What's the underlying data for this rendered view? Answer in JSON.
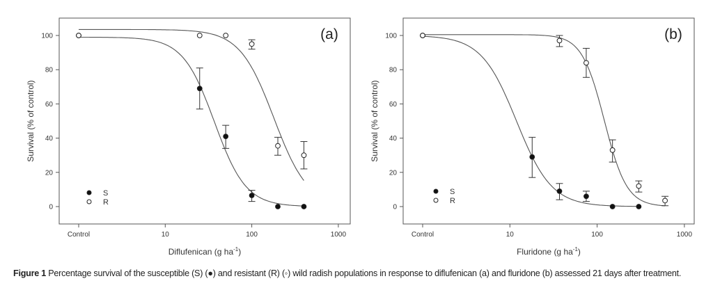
{
  "chart_data": [
    {
      "type": "scatter",
      "panel_label": "(a)",
      "xlabel": "Diflufenican (g ha",
      "xlabel_sup": "-1",
      "xlabel_end": ")",
      "ylabel": "Survival (% of control)",
      "xscale": "log",
      "xticks": [
        "Control",
        "10",
        "100",
        "1000"
      ],
      "yticks": [
        0,
        20,
        40,
        60,
        80,
        100
      ],
      "ylim": [
        -10,
        110
      ],
      "legend": {
        "placement": "bottom-left",
        "entries": [
          {
            "name": "S",
            "marker": "filled-circle"
          },
          {
            "name": "R",
            "marker": "open-circle"
          }
        ]
      },
      "series": [
        {
          "name": "S",
          "marker": "filled",
          "x": [
            "Control",
            25,
            50,
            100,
            200,
            400
          ],
          "y": [
            100,
            69,
            41,
            6.5,
            0,
            0
          ],
          "err_low": [
            null,
            57,
            34,
            3,
            null,
            null
          ],
          "err_high": [
            null,
            81,
            47.5,
            9.5,
            null,
            null
          ],
          "fit": {
            "top": 99,
            "ed50": 37,
            "slope": 2.38
          }
        },
        {
          "name": "R",
          "marker": "open",
          "x": [
            "Control",
            25,
            50,
            100,
            200,
            400
          ],
          "y": [
            100,
            100,
            100,
            95,
            35.5,
            30
          ],
          "err_low": [
            null,
            null,
            null,
            92,
            30,
            22
          ],
          "err_high": [
            null,
            null,
            null,
            97.5,
            40.5,
            38
          ],
          "fit": {
            "top": 103.5,
            "ed50": 180,
            "slope": 2.2
          }
        }
      ]
    },
    {
      "type": "scatter",
      "panel_label": "(b)",
      "xlabel": "Fluridone (g ha",
      "xlabel_sup": "-1",
      "xlabel_end": ")",
      "ylabel": "Survival (% of control)",
      "xscale": "log",
      "xticks": [
        "Control",
        "10",
        "100",
        "1000"
      ],
      "yticks": [
        0,
        20,
        40,
        60,
        80,
        100
      ],
      "ylim": [
        -10,
        110
      ],
      "legend": {
        "placement": "bottom-left",
        "entries": [
          {
            "name": "S",
            "marker": "filled-circle"
          },
          {
            "name": "R",
            "marker": "open-circle"
          }
        ]
      },
      "series": [
        {
          "name": "S",
          "marker": "filled",
          "x": [
            "Control",
            18,
            37,
            75,
            150,
            300
          ],
          "y": [
            100,
            29,
            9,
            6,
            0,
            0
          ],
          "err_low": [
            null,
            17,
            4,
            3,
            null,
            null
          ],
          "err_high": [
            null,
            40.5,
            13.5,
            9,
            null,
            null
          ],
          "fit": {
            "top": 100,
            "ed50": 11.9,
            "slope": 2.15,
            "xmax": 300
          }
        },
        {
          "name": "R",
          "marker": "open",
          "x": [
            "Control",
            37,
            75,
            150,
            300,
            600
          ],
          "y": [
            100,
            97,
            84,
            33,
            12,
            3.5
          ],
          "err_low": [
            null,
            93.5,
            75.5,
            26,
            8.5,
            0.5
          ],
          "err_high": [
            null,
            100,
            92.5,
            39,
            15,
            6
          ],
          "fit": {
            "top": 100.5,
            "ed50": 121,
            "slope": 3.37,
            "xmax": 600
          }
        }
      ]
    }
  ],
  "caption": {
    "label": "Figure 1",
    "text": " Percentage survival of the susceptible (S) (●) and resistant (R) (◦) wild radish populations in response to diflufenican (a) and fluridone (b) assessed 21 days after treatment."
  }
}
